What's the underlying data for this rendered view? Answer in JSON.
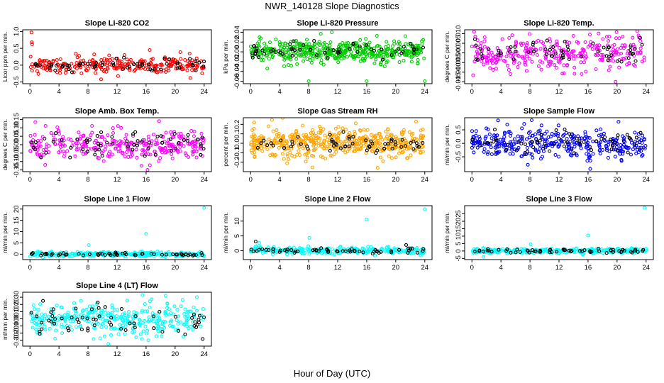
{
  "figure": {
    "title": "NWR_140128  Slope Diagnostics",
    "xlabel": "Hour of Day (UTC)"
  },
  "chart_data": [
    {
      "type": "scatter",
      "title": "Slope Li-820 CO2",
      "ylabel": "Licor ppm per min.",
      "xlim": [
        -1,
        25
      ],
      "ylim": [
        -0.55,
        1.05
      ],
      "yticks": [
        -0.5,
        0.0,
        0.5,
        1.0
      ],
      "xticks": [
        0,
        4,
        8,
        12,
        16,
        20,
        24
      ],
      "series": [
        {
          "color": "#ff0000",
          "center": 0.0,
          "spread": 0.13,
          "n": 260,
          "outliers": [
            [
              0.2,
              0.97
            ],
            [
              0.25,
              0.68
            ],
            [
              0.3,
              0.62
            ],
            [
              16.5,
              0.45
            ],
            [
              9.8,
              -0.42
            ],
            [
              22.1,
              -0.38
            ]
          ]
        },
        {
          "color": "#000000",
          "center": 0.0,
          "spread": 0.08,
          "n": 60,
          "outliers": []
        }
      ]
    },
    {
      "type": "scatter",
      "title": "Slope Li-820 Pressure",
      "ylabel": "kPa per min.",
      "xlim": [
        -1,
        25
      ],
      "ylim": [
        -0.065,
        0.045
      ],
      "yticks": [
        -0.06,
        -0.04,
        -0.02,
        0.0,
        0.02,
        0.04
      ],
      "xticks": [
        0,
        4,
        8,
        12,
        16,
        20,
        24
      ],
      "series": [
        {
          "color": "#00cc00",
          "center": 0.0,
          "spread": 0.011,
          "n": 480,
          "outliers": [
            [
              2.3,
              -0.034
            ],
            [
              8.0,
              -0.06
            ],
            [
              16.0,
              -0.06
            ],
            [
              24.0,
              -0.06
            ],
            [
              11.2,
              0.04
            ]
          ]
        },
        {
          "color": "#000000",
          "center": 0.0,
          "spread": 0.008,
          "n": 60,
          "outliers": []
        }
      ]
    },
    {
      "type": "scatter",
      "title": "Slope Li-820 Temp.",
      "ylabel": "degrees C per min.",
      "xlim": [
        -1,
        25
      ],
      "ylim": [
        -0.016,
        0.012
      ],
      "yticks": [
        -0.015,
        -0.01,
        -0.005,
        0.0,
        0.005,
        0.01
      ],
      "xticks": [
        0,
        4,
        8,
        12,
        16,
        20,
        24
      ],
      "series": [
        {
          "color": "#ff00ff",
          "center": 0.0,
          "spread": 0.0045,
          "n": 300,
          "outliers": [
            [
              0.3,
              0.011
            ],
            [
              19.8,
              -0.015
            ],
            [
              5.3,
              -0.011
            ]
          ]
        },
        {
          "color": "#000000",
          "center": 0.0,
          "spread": 0.003,
          "n": 60,
          "outliers": []
        }
      ]
    },
    {
      "type": "scatter",
      "title": "Slope Amb. Box Temp.",
      "ylabel": "degrees C per min.",
      "xlim": [
        -1,
        25
      ],
      "ylim": [
        -0.16,
        0.16
      ],
      "yticks": [
        -0.15,
        -0.1,
        -0.05,
        0.0,
        0.05,
        0.1,
        0.15
      ],
      "xticks": [
        0,
        4,
        8,
        12,
        16,
        20,
        24
      ],
      "series": [
        {
          "color": "#ff00ff",
          "center": 0.0,
          "spread": 0.045,
          "n": 300,
          "outliers": [
            [
              16.2,
              -0.15
            ],
            [
              17.8,
              0.14
            ],
            [
              2.1,
              -0.12
            ]
          ]
        },
        {
          "color": "#000000",
          "center": 0.0,
          "spread": 0.04,
          "n": 60,
          "outliers": []
        }
      ]
    },
    {
      "type": "scatter",
      "title": "Slope Gas Stream RH",
      "ylabel": "percent per min.",
      "xlim": [
        -1,
        25
      ],
      "ylim": [
        -0.3,
        0.27
      ],
      "yticks": [
        -0.2,
        -0.1,
        0.0,
        0.1,
        0.2
      ],
      "xticks": [
        0,
        4,
        8,
        12,
        16,
        20,
        24
      ],
      "series": [
        {
          "color": "#ffa500",
          "center": 0.0,
          "spread": 0.075,
          "n": 480,
          "outliers": [
            [
              0.5,
              0.22
            ],
            [
              22.8,
              0.23
            ],
            [
              17.5,
              -0.26
            ]
          ]
        },
        {
          "color": "#000000",
          "center": 0.0,
          "spread": 0.05,
          "n": 60,
          "outliers": []
        }
      ]
    },
    {
      "type": "scatter",
      "title": "Slope Sample Flow",
      "ylabel": "ml/min per min.",
      "xlim": [
        -1,
        25
      ],
      "ylim": [
        -1.05,
        0.95
      ],
      "yticks": [
        -0.5,
        0.0,
        0.5
      ],
      "xticks": [
        0,
        4,
        8,
        12,
        16,
        20,
        24
      ],
      "series": [
        {
          "color": "#0000ff",
          "center": 0.0,
          "spread": 0.27,
          "n": 340,
          "outliers": [
            [
              3.6,
              0.85
            ],
            [
              7.2,
              0.72
            ],
            [
              16.3,
              -0.95
            ],
            [
              20.2,
              0.8
            ]
          ]
        },
        {
          "color": "#000000",
          "center": 0.0,
          "spread": 0.22,
          "n": 60,
          "outliers": []
        }
      ]
    },
    {
      "type": "scatter",
      "title": "Slope Line 1 Flow",
      "ylabel": "ml/min per min.",
      "xlim": [
        -1,
        25
      ],
      "ylim": [
        -2.4,
        21.5
      ],
      "yticks": [
        0,
        5,
        10,
        15,
        20
      ],
      "xticks": [
        0,
        4,
        8,
        12,
        16,
        20,
        24
      ],
      "series": [
        {
          "color": "#00ffff",
          "center": 0.0,
          "spread": 0.45,
          "n": 300,
          "outliers": [
            [
              8.1,
              4.0
            ],
            [
              16.0,
              9.0
            ],
            [
              24.0,
              20.5
            ],
            [
              1.8,
              -1.5
            ]
          ]
        },
        {
          "color": "#000000",
          "center": 0.0,
          "spread": 0.3,
          "n": 60,
          "outliers": []
        }
      ]
    },
    {
      "type": "scatter",
      "title": "Slope Line 2 Flow",
      "ylabel": "ml/min per min.",
      "xlim": [
        -1,
        25
      ],
      "ylim": [
        -3.0,
        15.2
      ],
      "yticks": [
        0,
        5,
        10
      ],
      "xticks": [
        0,
        4,
        8,
        12,
        16,
        20,
        24
      ],
      "series": [
        {
          "color": "#00ffff",
          "center": 0.0,
          "spread": 0.55,
          "n": 300,
          "outliers": [
            [
              8.1,
              4.3
            ],
            [
              16.0,
              10.5
            ],
            [
              24.0,
              14.0
            ],
            [
              1.2,
              2.6
            ]
          ]
        },
        {
          "color": "#000000",
          "center": 0.0,
          "spread": 0.45,
          "n": 60,
          "outliers": [
            [
              0.7,
              3.1
            ]
          ]
        }
      ]
    },
    {
      "type": "scatter",
      "title": "Slope Line 3 Flow",
      "ylabel": "ml/min per min.",
      "xlim": [
        -1,
        25
      ],
      "ylim": [
        -5.8,
        30.5
      ],
      "yticks": [
        -5,
        0,
        5,
        10,
        15,
        20,
        25
      ],
      "xticks": [
        0,
        4,
        8,
        12,
        16,
        20,
        24
      ],
      "series": [
        {
          "color": "#00ffff",
          "center": 0.0,
          "spread": 0.8,
          "n": 300,
          "outliers": [
            [
              8.1,
              4.5
            ],
            [
              16.0,
              10.5
            ],
            [
              23.8,
              29.0
            ],
            [
              1.6,
              -4.0
            ]
          ]
        },
        {
          "color": "#000000",
          "center": 0.0,
          "spread": 0.6,
          "n": 60,
          "outliers": []
        }
      ]
    },
    {
      "type": "scatter",
      "title": "Slope Line 4 (LT) Flow",
      "ylabel": "ml/min per min.",
      "xlim": [
        -1,
        25
      ],
      "ylim": [
        -0.38,
        0.37
      ],
      "yticks": [
        -0.3,
        -0.2,
        -0.1,
        0.0,
        0.1,
        0.2,
        0.3
      ],
      "xticks": [
        0,
        4,
        8,
        12,
        16,
        20,
        24
      ],
      "series": [
        {
          "color": "#00ffff",
          "center": 0.0,
          "spread": 0.11,
          "n": 320,
          "outliers": [
            [
              10.8,
              -0.35
            ],
            [
              15.5,
              0.33
            ],
            [
              23.0,
              0.3
            ]
          ]
        },
        {
          "color": "#000000",
          "center": 0.0,
          "spread": 0.12,
          "n": 60,
          "outliers": [
            [
              1.8,
              0.25
            ],
            [
              23.8,
              -0.28
            ]
          ]
        }
      ]
    }
  ]
}
